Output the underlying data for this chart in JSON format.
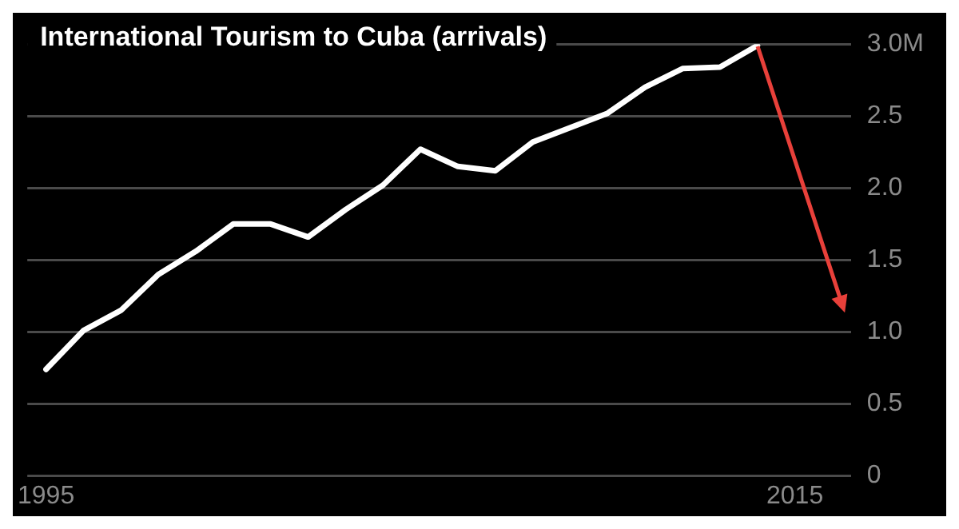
{
  "chart_data": {
    "type": "line",
    "title": "International Tourism to Cuba (arrivals)",
    "x": [
      1995,
      1996,
      1997,
      1998,
      1999,
      2000,
      2001,
      2002,
      2003,
      2004,
      2005,
      2006,
      2007,
      2008,
      2009,
      2010,
      2011,
      2012,
      2013,
      2014
    ],
    "series": [
      {
        "color": "#ffffff",
        "values": [
          0.74,
          1.01,
          1.15,
          1.4,
          1.56,
          1.75,
          1.75,
          1.66,
          1.85,
          2.02,
          2.27,
          2.15,
          2.12,
          2.32,
          2.42,
          2.52,
          2.7,
          2.83,
          2.84,
          2.99
        ]
      }
    ],
    "xlim": [
      1994.5,
      2016.5
    ],
    "ylim": [
      0,
      3.0
    ],
    "xticks": [
      1995,
      2015
    ],
    "yticks": [
      0,
      {
        "value": 0.5,
        "label": "0.5"
      },
      {
        "value": 1.0,
        "label": "1.0"
      },
      1.5,
      {
        "value": 2.0,
        "label": "2.0"
      },
      2.5,
      {
        "value": 3.0,
        "label": "3.0M"
      }
    ],
    "grid": "y",
    "legend": false,
    "marker": "none",
    "line_style": "solid"
  }
}
